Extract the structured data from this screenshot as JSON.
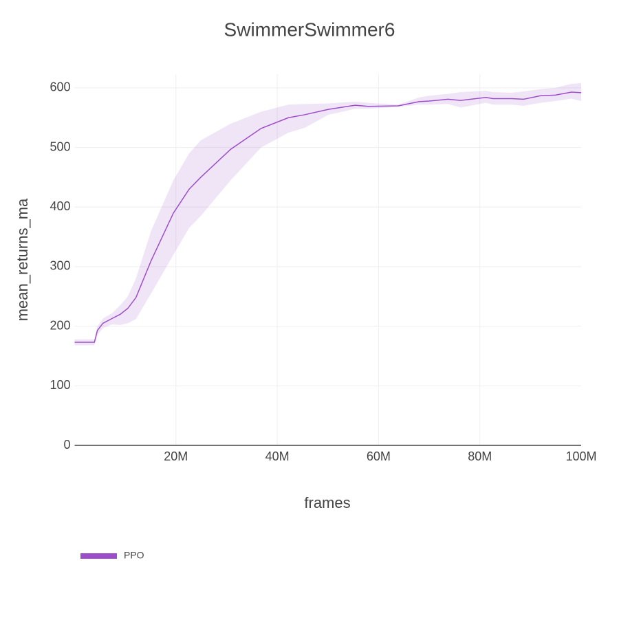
{
  "chart_data": {
    "type": "line",
    "title": "SwimmerSwimmer6",
    "x_label": "frames",
    "y_label": "mean_returns_ma",
    "x": [
      0,
      1800000,
      3900000,
      4500000,
      5600000,
      7400000,
      9000000,
      10500000,
      12100000,
      15100000,
      19500000,
      22600000,
      24900000,
      30800000,
      36800000,
      42200000,
      45400000,
      50100000,
      55400000,
      58000000,
      63900000,
      68000000,
      70000000,
      73700000,
      76200000,
      81200000,
      82600000,
      86300000,
      88600000,
      92000000,
      94900000,
      98100000,
      100000000
    ],
    "series": [
      {
        "name": "PPO",
        "color": "#9b4dca",
        "values": [
          173,
          173,
          173,
          193,
          205,
          213,
          220,
          230,
          248,
          310,
          390,
          430,
          450,
          497,
          532,
          550,
          555,
          564,
          571,
          569,
          570,
          577,
          578,
          581,
          579,
          584,
          582,
          582,
          581,
          587,
          588,
          593,
          592
        ],
        "upper": [
          178,
          178,
          178,
          200,
          213,
          222,
          235,
          250,
          280,
          360,
          445,
          490,
          512,
          540,
          560,
          572,
          573,
          574,
          577,
          575,
          572,
          584,
          587,
          590,
          593,
          595,
          593,
          592,
          594,
          598,
          600,
          607,
          608
        ],
        "lower": [
          168,
          168,
          168,
          185,
          197,
          203,
          202,
          205,
          212,
          255,
          320,
          365,
          385,
          445,
          500,
          525,
          533,
          555,
          565,
          565,
          568,
          572,
          572,
          573,
          567,
          575,
          572,
          572,
          570,
          575,
          578,
          582,
          578
        ]
      }
    ],
    "xlim": [
      0,
      100000000
    ],
    "ylim": [
      0,
      623
    ],
    "xticks": [
      {
        "value": 20000000,
        "label": "20M"
      },
      {
        "value": 40000000,
        "label": "40M"
      },
      {
        "value": 60000000,
        "label": "60M"
      },
      {
        "value": 80000000,
        "label": "80M"
      },
      {
        "value": 100000000,
        "label": "100M"
      }
    ],
    "yticks": [
      0,
      100,
      200,
      300,
      400,
      500,
      600
    ],
    "grid": true,
    "legend": "bottom-left"
  }
}
